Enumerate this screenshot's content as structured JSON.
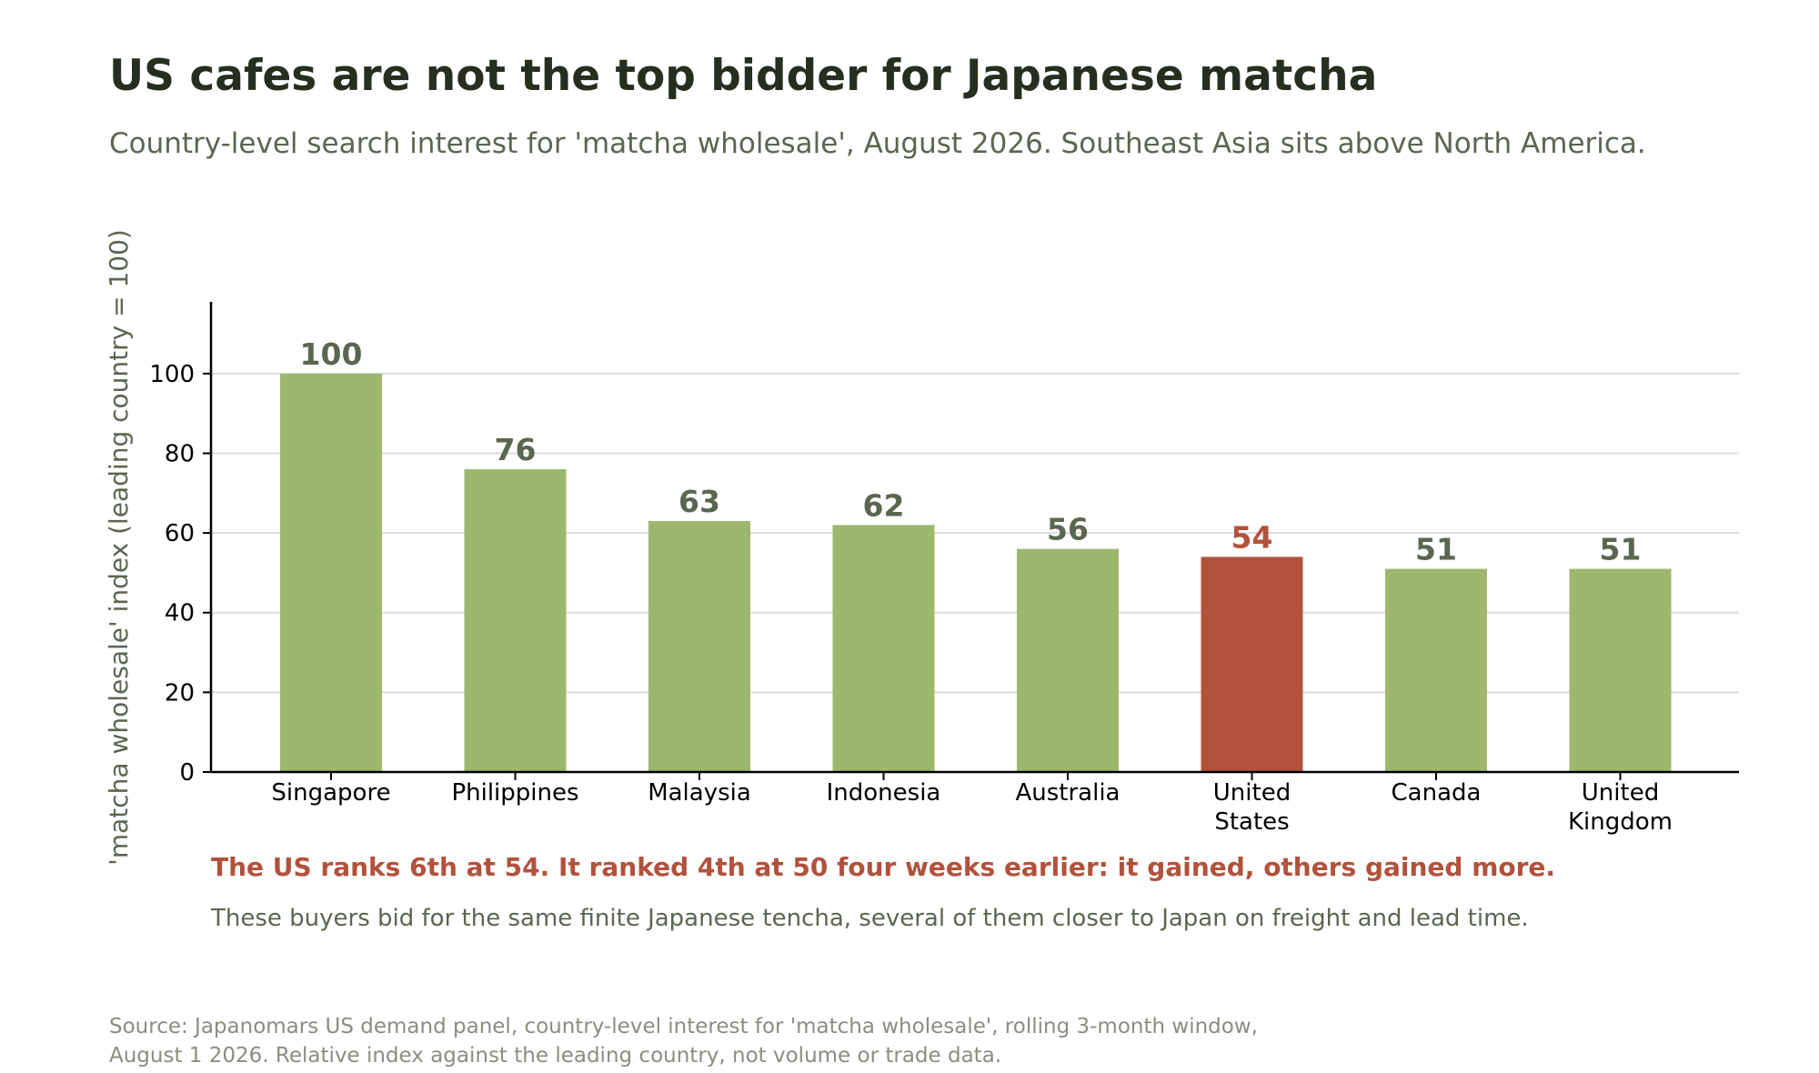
{
  "title": "US cafes are not the top bidder for Japanese matcha",
  "subtitle": "Country-level search interest for 'matcha wholesale', August 2026. Southeast Asia sits above North America.",
  "source": {
    "line1": "Source: Japanomars US demand panel, country-level interest for 'matcha wholesale', rolling 3-month window,",
    "line2": "August 1 2026. Relative index against the leading country, not volume or trade data."
  },
  "colors": {
    "bar": "#9db86e",
    "highlight": "#b2513c",
    "value_label": "#5b6650",
    "grid": "#dcdcdc",
    "axis": "#000000",
    "annotation_strong": "#b2513c",
    "annotation_note": "#5b6650"
  },
  "chart_data": {
    "type": "bar",
    "title": "US cafes are not the top bidder for Japanese matcha",
    "subtitle": "Country-level search interest for 'matcha wholesale', August 2026. Southeast Asia sits above North America.",
    "xlabel": "",
    "ylabel": "'matcha wholesale' index (leading country = 100)",
    "categories": [
      [
        "Singapore"
      ],
      [
        "Philippines"
      ],
      [
        "Malaysia"
      ],
      [
        "Indonesia"
      ],
      [
        "Australia"
      ],
      [
        "United",
        "States"
      ],
      [
        "Canada"
      ],
      [
        "United",
        "Kingdom"
      ]
    ],
    "values": [
      100,
      76,
      63,
      62,
      56,
      54,
      51,
      51
    ],
    "value_labels": [
      "100",
      "76",
      "63",
      "62",
      "56",
      "54",
      "51",
      "51"
    ],
    "highlight_index": 5,
    "ylim": [
      0,
      118
    ],
    "yticks": [
      0,
      20,
      40,
      60,
      80,
      100
    ],
    "ytick_labels": [
      "0",
      "20",
      "40",
      "60",
      "80",
      "100"
    ],
    "grid": true,
    "annotations": [
      "The US ranks 6th at 54. It ranked 4th at 50 four weeks earlier: it gained, others gained more.",
      "These buyers bid for the same finite Japanese tencha, several of them closer to Japan on freight and lead time."
    ]
  }
}
